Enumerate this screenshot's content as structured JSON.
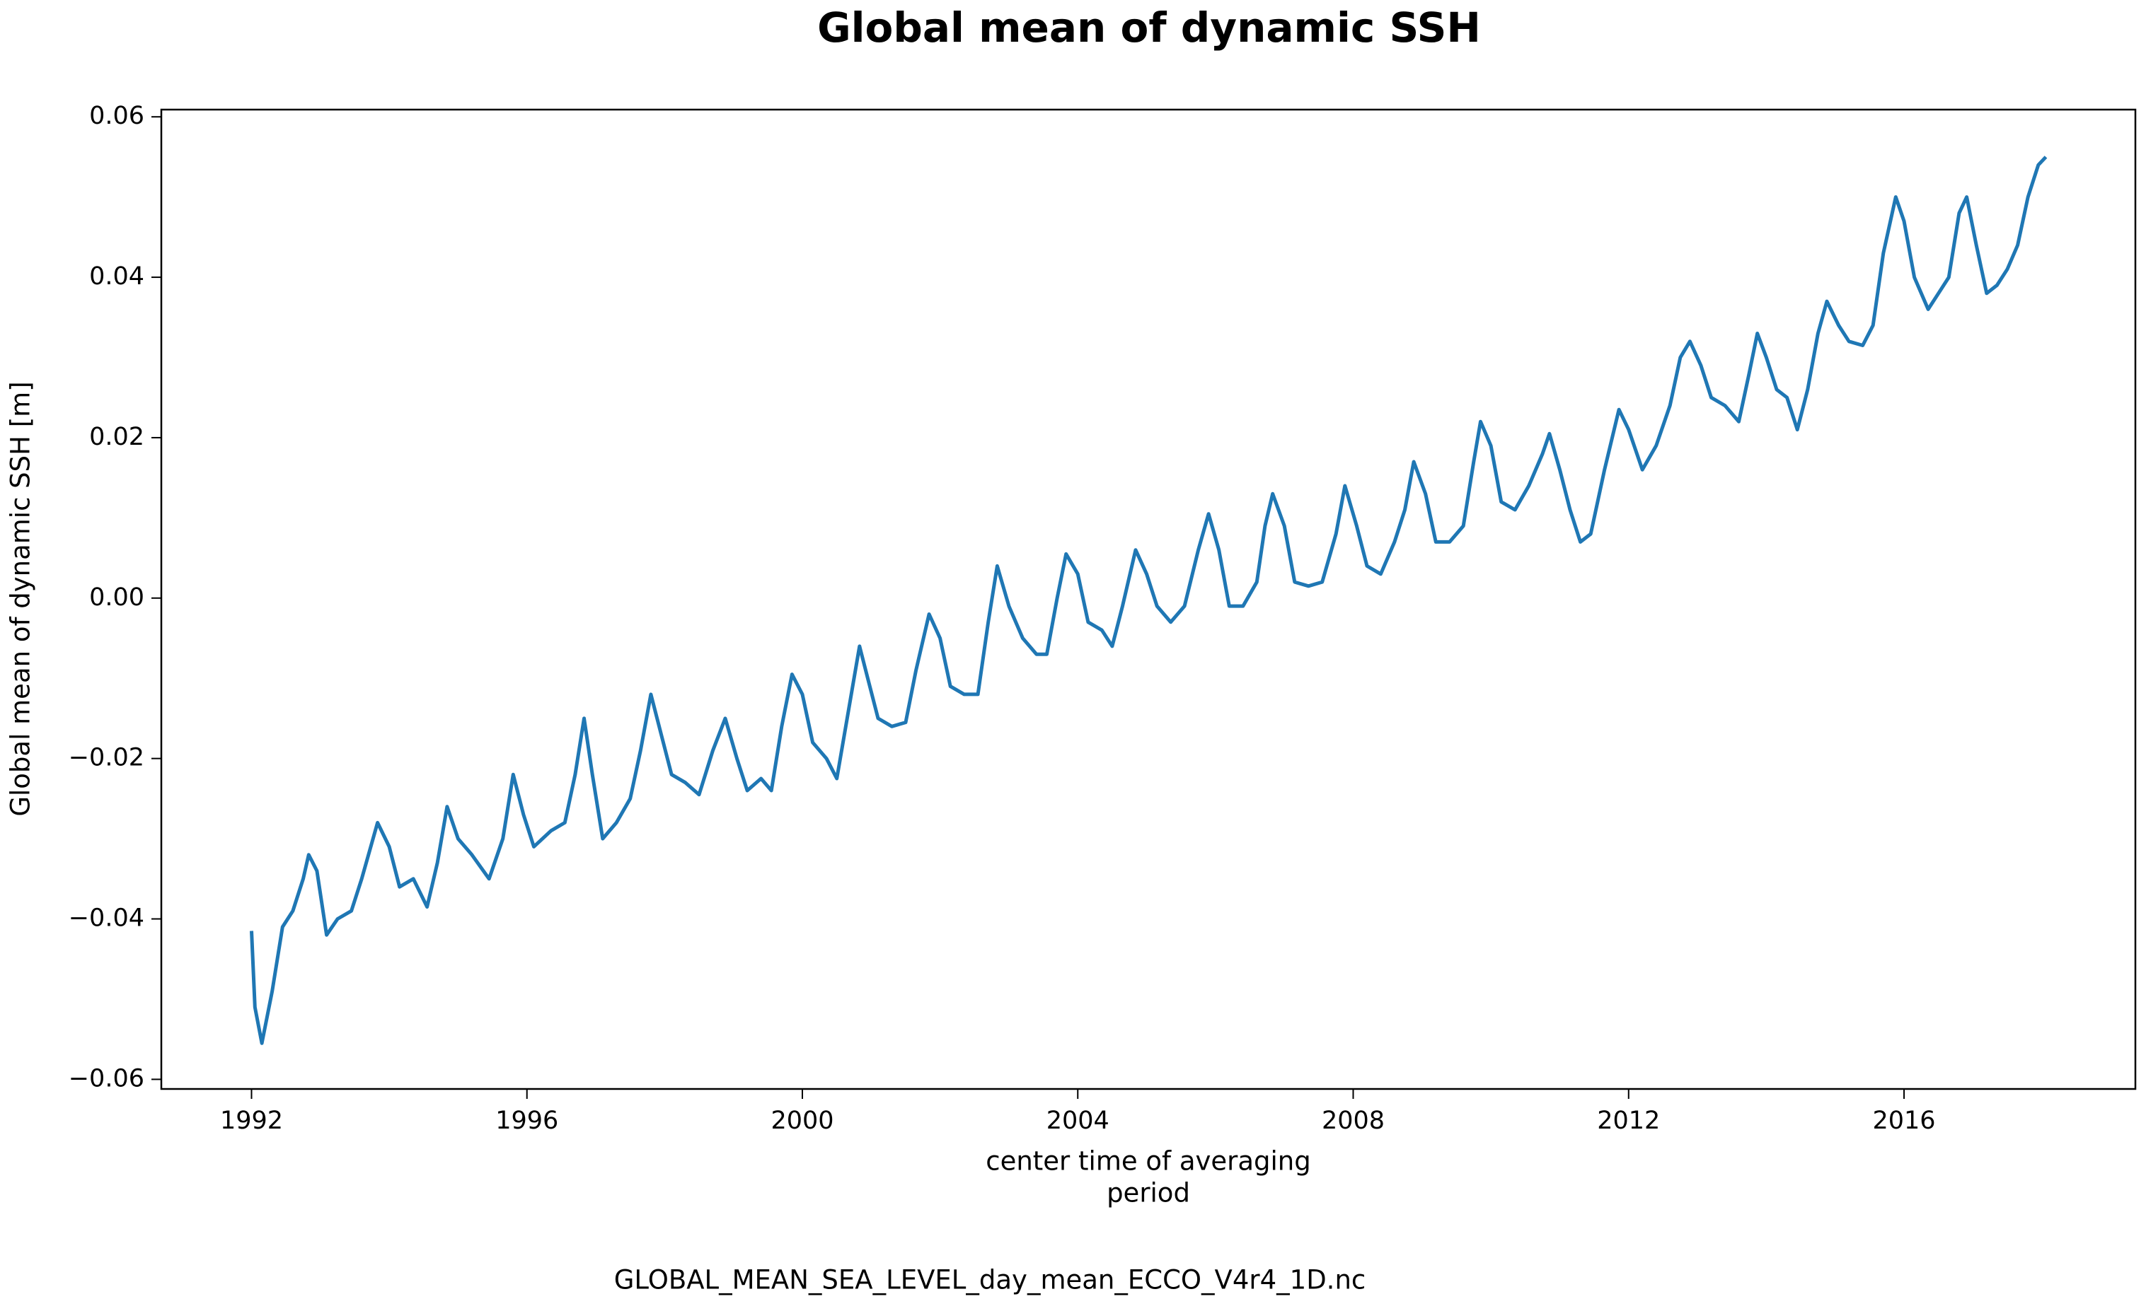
{
  "chart_data": {
    "type": "line",
    "title": "Global mean of dynamic SSH",
    "y_label": "Global mean of dynamic SSH [m]",
    "x_label": [
      "center time of averaging",
      "period"
    ],
    "footnote": "GLOBAL_MEAN_SEA_LEVEL_day_mean_ECCO_V4r4_1D.nc",
    "xlim": [
      1990.69,
      2019.36
    ],
    "ylim": [
      -0.0612,
      0.0609
    ],
    "xticks": [
      1992,
      1996,
      2000,
      2004,
      2008,
      2012,
      2016
    ],
    "yticks": [
      {
        "value": -0.06,
        "label": "−0.06"
      },
      {
        "value": -0.04,
        "label": "−0.04"
      },
      {
        "value": -0.02,
        "label": "−0.02"
      },
      {
        "value": 0,
        "label": "0.00"
      },
      0.02,
      0.04,
      0.06
    ],
    "grid": false,
    "x": [
      1992.0,
      1992.05,
      1992.15,
      1992.3,
      1992.45,
      1992.6,
      1992.75,
      1992.83,
      1992.95,
      1993.09,
      1993.25,
      1993.45,
      1993.6,
      1993.83,
      1994.0,
      1994.15,
      1994.35,
      1994.55,
      1994.7,
      1994.84,
      1995.0,
      1995.2,
      1995.45,
      1995.65,
      1995.8,
      1995.95,
      1996.1,
      1996.35,
      1996.55,
      1996.7,
      1996.83,
      1996.95,
      1997.1,
      1997.3,
      1997.5,
      1997.65,
      1997.8,
      1997.95,
      1998.1,
      1998.3,
      1998.5,
      1998.7,
      1998.88,
      1999.05,
      1999.2,
      1999.4,
      1999.55,
      1999.7,
      1999.85,
      2000.0,
      2000.15,
      2000.35,
      2000.5,
      2000.65,
      2000.83,
      2000.95,
      2001.1,
      2001.3,
      2001.5,
      2001.65,
      2001.84,
      2002.0,
      2002.15,
      2002.35,
      2002.55,
      2002.7,
      2002.83,
      2003.0,
      2003.2,
      2003.4,
      2003.55,
      2003.7,
      2003.83,
      2004.0,
      2004.15,
      2004.35,
      2004.5,
      2004.65,
      2004.84,
      2005.0,
      2005.15,
      2005.35,
      2005.55,
      2005.75,
      2005.9,
      2006.05,
      2006.2,
      2006.4,
      2006.6,
      2006.72,
      2006.83,
      2007.0,
      2007.15,
      2007.35,
      2007.55,
      2007.75,
      2007.88,
      2008.05,
      2008.2,
      2008.4,
      2008.6,
      2008.75,
      2008.88,
      2009.05,
      2009.2,
      2009.4,
      2009.6,
      2009.75,
      2009.85,
      2010.0,
      2010.15,
      2010.35,
      2010.55,
      2010.75,
      2010.85,
      2011.0,
      2011.15,
      2011.3,
      2011.45,
      2011.65,
      2011.86,
      2012.0,
      2012.2,
      2012.4,
      2012.6,
      2012.75,
      2012.89,
      2013.05,
      2013.2,
      2013.4,
      2013.6,
      2013.75,
      2013.87,
      2014.0,
      2014.15,
      2014.3,
      2014.45,
      2014.6,
      2014.75,
      2014.88,
      2015.05,
      2015.2,
      2015.4,
      2015.55,
      2015.7,
      2015.88,
      2016.0,
      2016.15,
      2016.35,
      2016.5,
      2016.65,
      2016.8,
      2016.91,
      2017.05,
      2017.2,
      2017.35,
      2017.5,
      2017.65,
      2017.8,
      2017.95,
      2018.06
    ],
    "series": [
      {
        "name": "Global mean of dynamic SSH",
        "color": "#1f77b4",
        "values": [
          -0.0415,
          -0.051,
          -0.0555,
          -0.049,
          -0.041,
          -0.039,
          -0.035,
          -0.032,
          -0.034,
          -0.042,
          -0.04,
          -0.039,
          -0.035,
          -0.028,
          -0.031,
          -0.036,
          -0.035,
          -0.0385,
          -0.033,
          -0.026,
          -0.03,
          -0.032,
          -0.035,
          -0.03,
          -0.022,
          -0.027,
          -0.031,
          -0.029,
          -0.028,
          -0.022,
          -0.015,
          -0.022,
          -0.03,
          -0.028,
          -0.025,
          -0.019,
          -0.012,
          -0.017,
          -0.022,
          -0.023,
          -0.0245,
          -0.019,
          -0.015,
          -0.02,
          -0.024,
          -0.0225,
          -0.024,
          -0.016,
          -0.0095,
          -0.012,
          -0.018,
          -0.02,
          -0.0225,
          -0.015,
          -0.006,
          -0.01,
          -0.015,
          -0.016,
          -0.0155,
          -0.009,
          -0.002,
          -0.005,
          -0.011,
          -0.012,
          -0.012,
          -0.003,
          0.004,
          -0.001,
          -0.005,
          -0.007,
          -0.007,
          0.0,
          0.0055,
          0.003,
          -0.003,
          -0.004,
          -0.006,
          -0.001,
          0.006,
          0.003,
          -0.001,
          -0.003,
          -0.001,
          0.006,
          0.0105,
          0.006,
          -0.001,
          -0.001,
          0.002,
          0.009,
          0.013,
          0.009,
          0.002,
          0.0015,
          0.002,
          0.008,
          0.014,
          0.009,
          0.004,
          0.003,
          0.007,
          0.011,
          0.017,
          0.013,
          0.007,
          0.007,
          0.009,
          0.017,
          0.022,
          0.019,
          0.012,
          0.011,
          0.014,
          0.018,
          0.0205,
          0.016,
          0.011,
          0.007,
          0.008,
          0.016,
          0.0235,
          0.021,
          0.016,
          0.019,
          0.024,
          0.03,
          0.032,
          0.029,
          0.025,
          0.024,
          0.022,
          0.028,
          0.033,
          0.03,
          0.026,
          0.025,
          0.021,
          0.026,
          0.033,
          0.037,
          0.034,
          0.032,
          0.0315,
          0.034,
          0.043,
          0.05,
          0.047,
          0.04,
          0.036,
          0.038,
          0.04,
          0.048,
          0.05,
          0.044,
          0.038,
          0.039,
          0.041,
          0.044,
          0.05,
          0.054,
          0.055
        ]
      }
    ]
  }
}
